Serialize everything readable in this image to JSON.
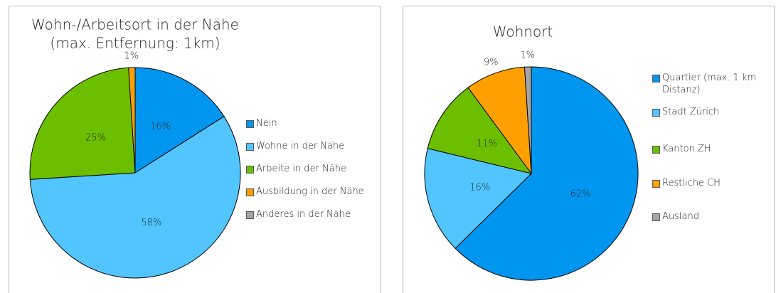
{
  "chart_data": [
    {
      "type": "pie",
      "title": [
        "Wohn-/Arbeitsort in der Nähe",
        "(max. Entfernung: 1km)"
      ],
      "categories": [
        "Nein",
        "Wohne in der Nähe",
        "Arbeite in der Nähe",
        "Ausbildung in der Nähe",
        "Anderes in der Nähe"
      ],
      "values": [
        16,
        58,
        25,
        1,
        0
      ],
      "value_labels": [
        "16%",
        "58%",
        "25%",
        "1%",
        null
      ],
      "colors": [
        "#0096f0",
        "#52c5ff",
        "#6cbf00",
        "#ffa000",
        "#a6a6a6"
      ]
    },
    {
      "type": "pie",
      "title": [
        "Wohnort"
      ],
      "categories": [
        "Quartier (max. 1 km Distanz)",
        "Stadt Zürich",
        "Kanton ZH",
        "Restliche CH",
        "Ausland"
      ],
      "values": [
        62,
        16,
        11,
        9,
        1
      ],
      "value_labels": [
        "62%",
        "16%",
        "11%",
        "9%",
        "1%"
      ],
      "colors": [
        "#0096f0",
        "#52c5ff",
        "#6cbf00",
        "#ffa000",
        "#a6a6a6"
      ]
    }
  ]
}
